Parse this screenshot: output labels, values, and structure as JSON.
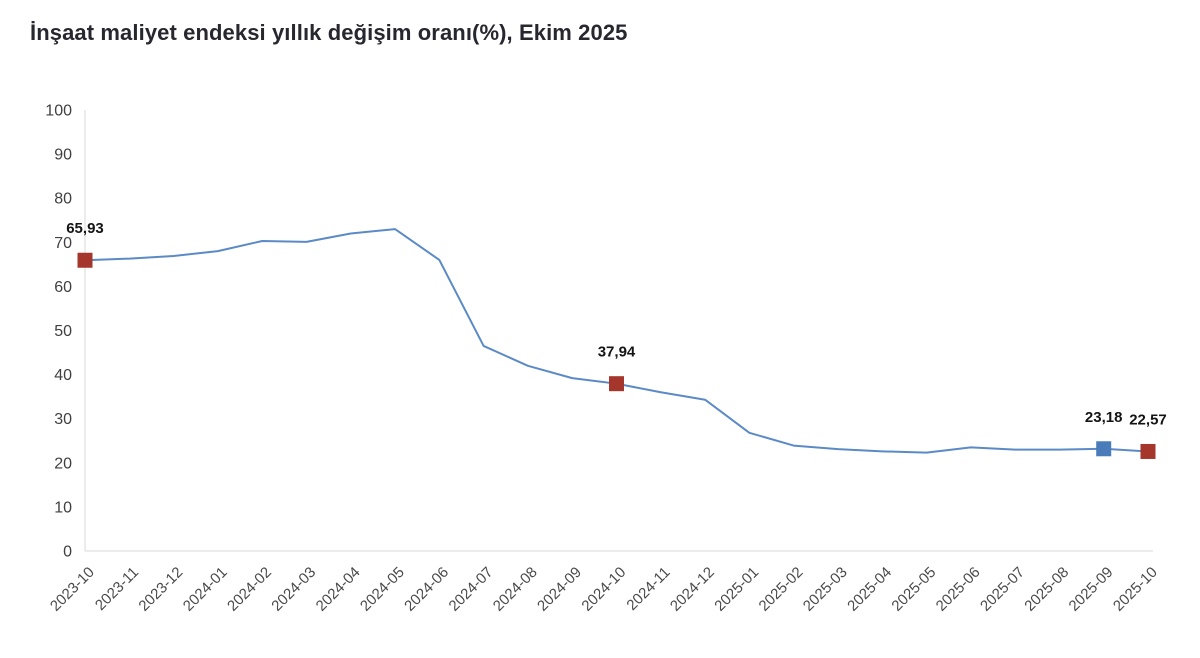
{
  "title": "İnşaat maliyet endeksi yıllık değişim oranı(%), Ekim 2025",
  "colors": {
    "line": "#5b8ac6",
    "marker_red": "#a5362b",
    "marker_blue": "#4a7cba",
    "axis_line": "#d9d9d9",
    "tick_text": "#404040",
    "title_text": "#27272f",
    "data_label_text": "#141414"
  },
  "chart_data": {
    "type": "line",
    "title": "İnşaat maliyet endeksi yıllık değişim oranı(%), Ekim 2025",
    "xlabel": "",
    "ylabel": "",
    "ylim": [
      0,
      100
    ],
    "ytick_step": 10,
    "grid": false,
    "legend": "none",
    "categories": [
      "2023-10",
      "2023-11",
      "2023-12",
      "2024-01",
      "2024-02",
      "2024-03",
      "2024-04",
      "2024-05",
      "2024-06",
      "2024-07",
      "2024-08",
      "2024-09",
      "2024-10",
      "2024-11",
      "2024-12",
      "2025-01",
      "2025-02",
      "2025-03",
      "2025-04",
      "2025-05",
      "2025-06",
      "2025-07",
      "2025-08",
      "2025-09",
      "2025-10"
    ],
    "values": [
      65.93,
      66.3,
      66.9,
      68.0,
      70.3,
      70.1,
      72.0,
      73.0,
      66.0,
      46.5,
      42.0,
      39.2,
      37.94,
      36.0,
      34.3,
      26.8,
      23.9,
      23.1,
      22.6,
      22.3,
      23.5,
      23.0,
      23.0,
      23.18,
      22.57
    ],
    "annotations": [
      {
        "index": 0,
        "label": "65,93",
        "marker": "red"
      },
      {
        "index": 12,
        "label": "37,94",
        "marker": "red"
      },
      {
        "index": 23,
        "label": "23,18",
        "marker": "blue"
      },
      {
        "index": 24,
        "label": "22,57",
        "marker": "red"
      }
    ]
  }
}
